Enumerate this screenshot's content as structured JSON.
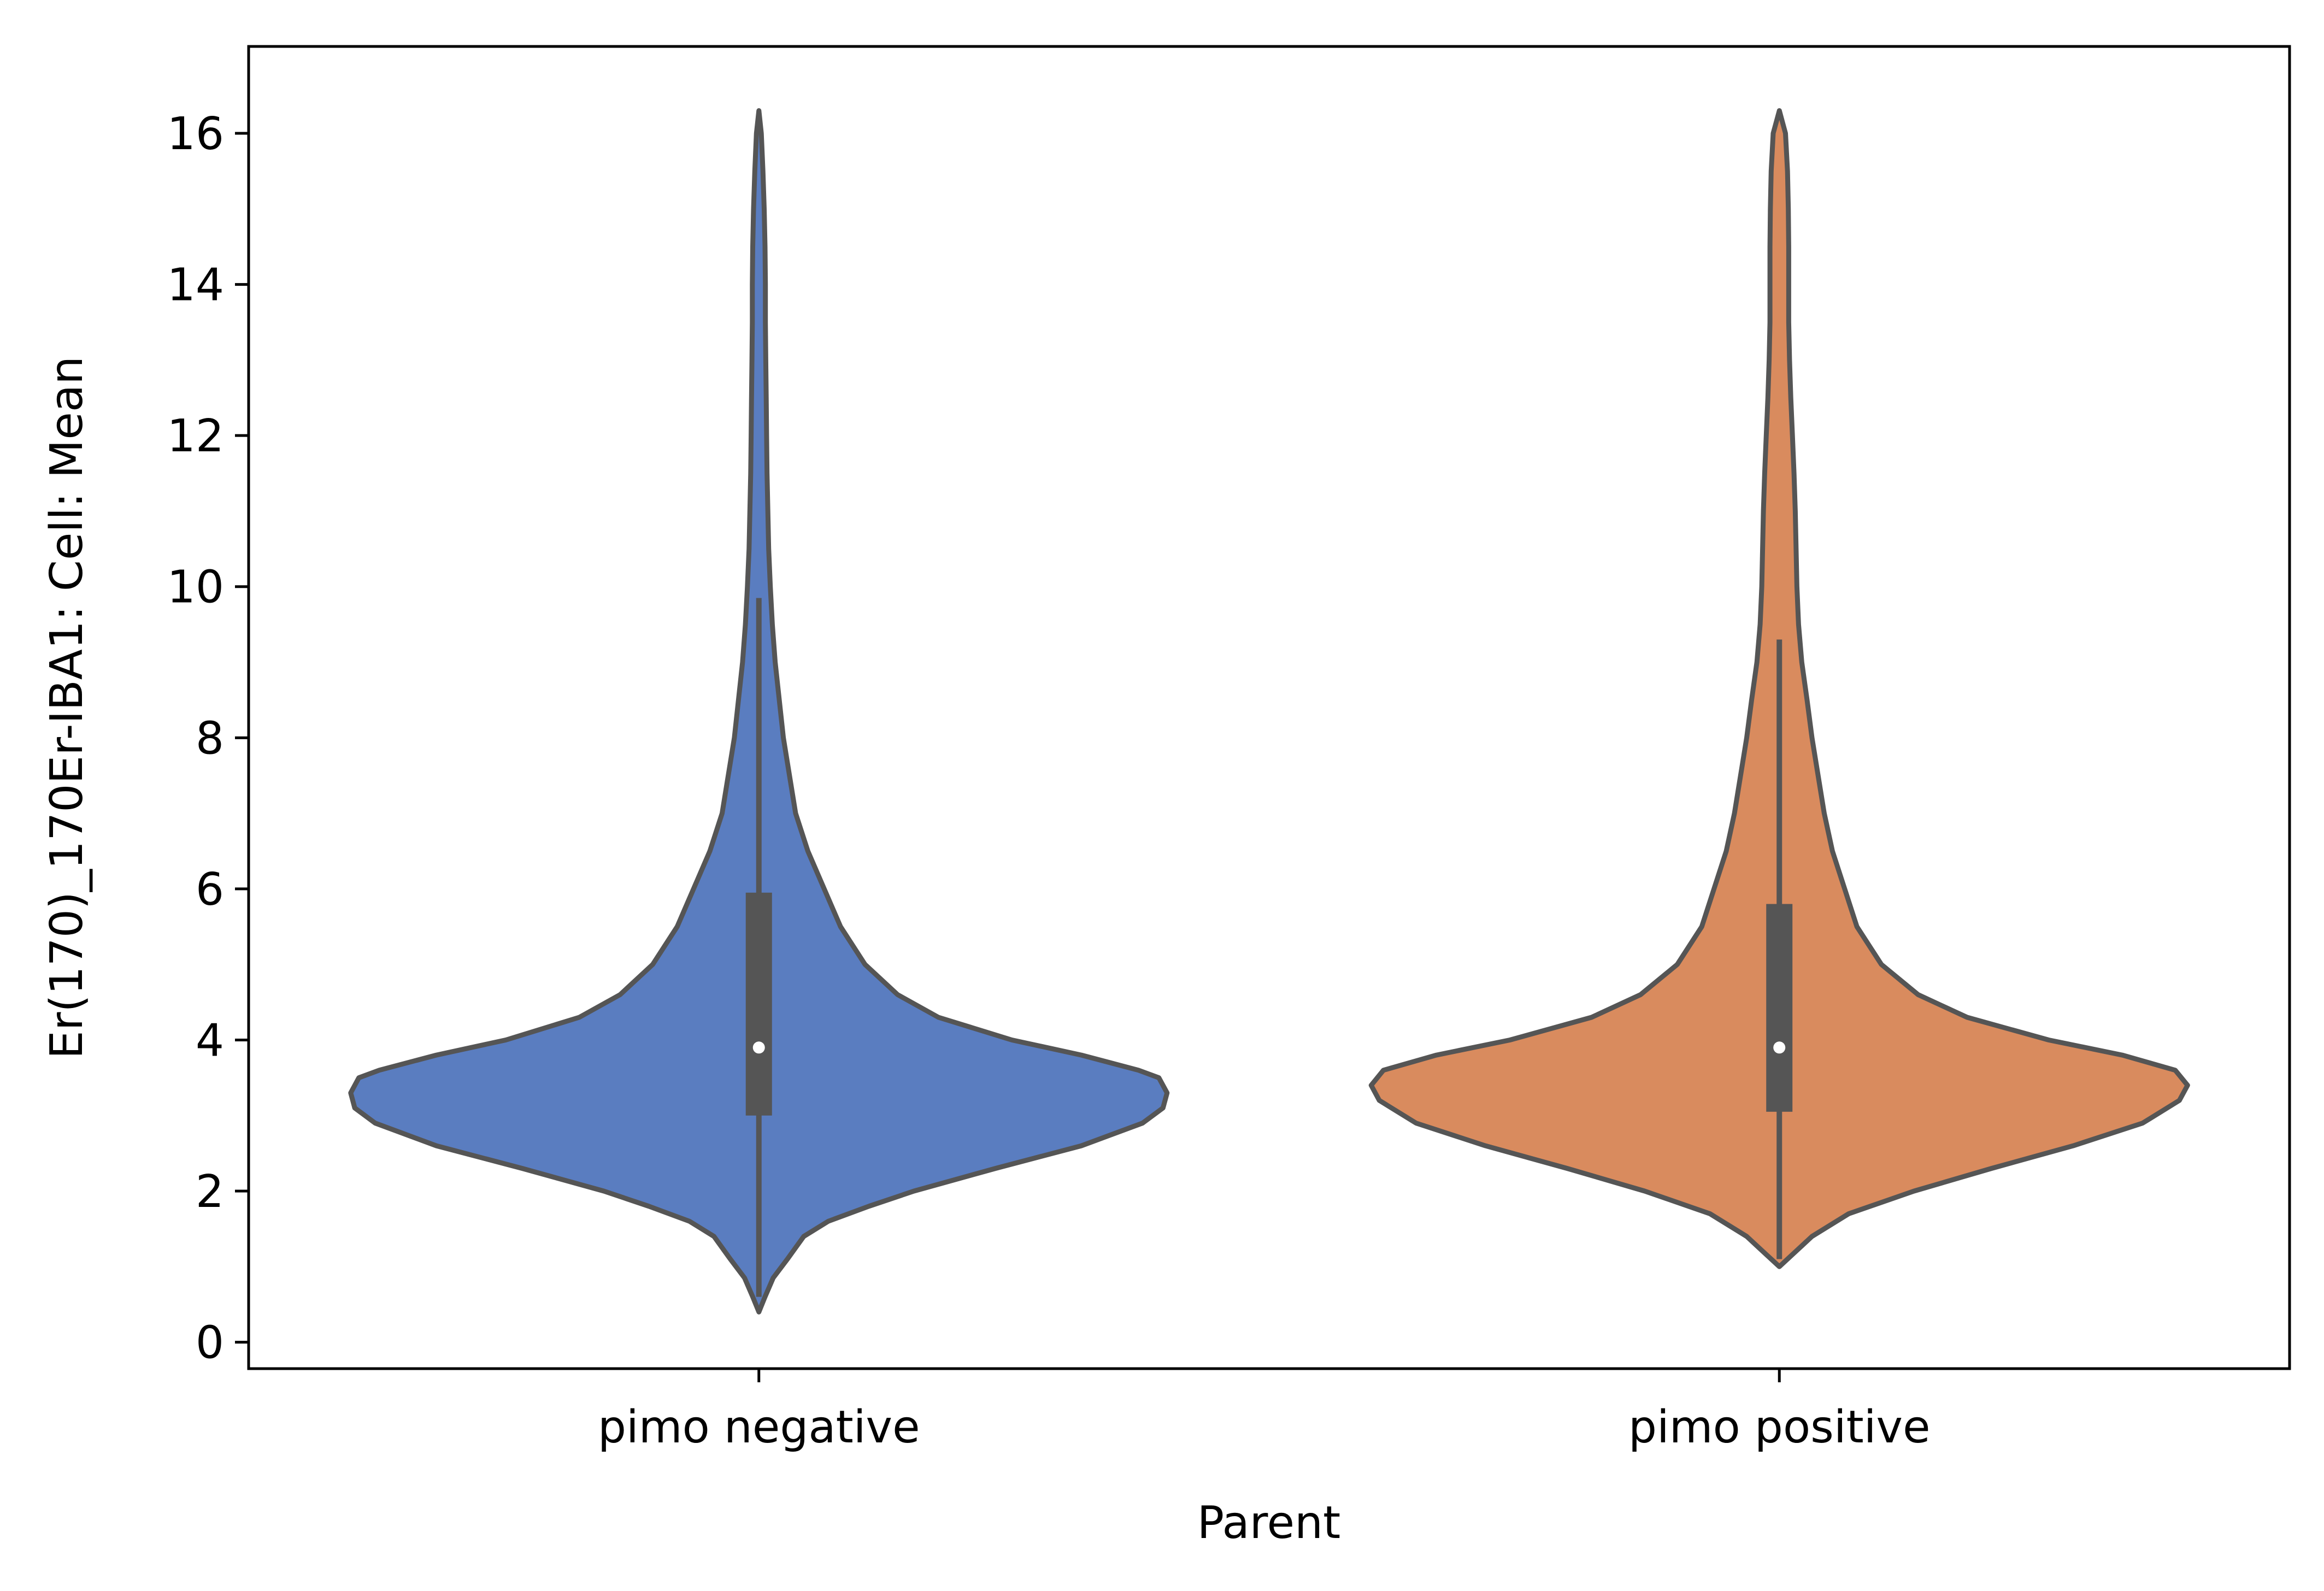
{
  "chart_data": {
    "type": "violin",
    "xlabel": "Parent",
    "ylabel": "Er(170)_170Er-IBA1: Cell: Mean",
    "categories": [
      "pimo negative",
      "pimo positive"
    ],
    "ylim": [
      -0.35,
      17.15
    ],
    "yticks": [
      0,
      2,
      4,
      6,
      8,
      10,
      12,
      14,
      16
    ],
    "grid": false,
    "colors": {
      "pimo negative": "#5a7dc0",
      "pimo positive": "#d98b5e",
      "outline": "#555555",
      "median_dot": "#ffffff"
    },
    "series": [
      {
        "category": "pimo negative",
        "min": 0.4,
        "max": 16.3,
        "q1": 3.0,
        "median": 3.9,
        "q3": 5.95,
        "whisker_low": 0.6,
        "whisker_high": 9.85,
        "density": [
          [
            0.4,
            0.0
          ],
          [
            0.6,
            0.015
          ],
          [
            0.85,
            0.035
          ],
          [
            1.1,
            0.07
          ],
          [
            1.4,
            0.11
          ],
          [
            1.6,
            0.17
          ],
          [
            1.8,
            0.27
          ],
          [
            2.0,
            0.38
          ],
          [
            2.3,
            0.58
          ],
          [
            2.6,
            0.79
          ],
          [
            2.9,
            0.94
          ],
          [
            3.1,
            0.99
          ],
          [
            3.3,
            1.0
          ],
          [
            3.5,
            0.98
          ],
          [
            3.6,
            0.93
          ],
          [
            3.8,
            0.79
          ],
          [
            4.0,
            0.62
          ],
          [
            4.3,
            0.44
          ],
          [
            4.6,
            0.34
          ],
          [
            5.0,
            0.26
          ],
          [
            5.5,
            0.2
          ],
          [
            6.0,
            0.16
          ],
          [
            6.5,
            0.12
          ],
          [
            7.0,
            0.09
          ],
          [
            7.5,
            0.075
          ],
          [
            8.0,
            0.06
          ],
          [
            8.5,
            0.05
          ],
          [
            9.0,
            0.04
          ],
          [
            9.5,
            0.033
          ],
          [
            10.0,
            0.028
          ],
          [
            10.5,
            0.024
          ],
          [
            11.0,
            0.022
          ],
          [
            11.5,
            0.02
          ],
          [
            12.0,
            0.019
          ],
          [
            12.5,
            0.018
          ],
          [
            13.0,
            0.017
          ],
          [
            13.5,
            0.016
          ],
          [
            14.0,
            0.016
          ],
          [
            14.5,
            0.015
          ],
          [
            15.0,
            0.013
          ],
          [
            15.5,
            0.01
          ],
          [
            16.0,
            0.006
          ],
          [
            16.3,
            0.0
          ]
        ]
      },
      {
        "category": "pimo positive",
        "min": 1.0,
        "max": 16.3,
        "q1": 3.05,
        "median": 3.9,
        "q3": 5.8,
        "whisker_low": 1.1,
        "whisker_high": 9.3,
        "density": [
          [
            1.0,
            0.0
          ],
          [
            1.15,
            0.03
          ],
          [
            1.4,
            0.08
          ],
          [
            1.7,
            0.17
          ],
          [
            2.0,
            0.33
          ],
          [
            2.3,
            0.52
          ],
          [
            2.6,
            0.72
          ],
          [
            2.9,
            0.89
          ],
          [
            3.2,
            0.98
          ],
          [
            3.4,
            1.0
          ],
          [
            3.6,
            0.97
          ],
          [
            3.8,
            0.84
          ],
          [
            4.0,
            0.66
          ],
          [
            4.3,
            0.46
          ],
          [
            4.6,
            0.34
          ],
          [
            5.0,
            0.25
          ],
          [
            5.5,
            0.19
          ],
          [
            6.0,
            0.16
          ],
          [
            6.5,
            0.13
          ],
          [
            7.0,
            0.11
          ],
          [
            7.5,
            0.095
          ],
          [
            8.0,
            0.08
          ],
          [
            8.5,
            0.068
          ],
          [
            9.0,
            0.055
          ],
          [
            9.5,
            0.047
          ],
          [
            10.0,
            0.043
          ],
          [
            10.5,
            0.041
          ],
          [
            11.0,
            0.039
          ],
          [
            11.5,
            0.036
          ],
          [
            12.0,
            0.032
          ],
          [
            12.5,
            0.028
          ],
          [
            13.0,
            0.025
          ],
          [
            13.5,
            0.023
          ],
          [
            14.0,
            0.023
          ],
          [
            14.5,
            0.023
          ],
          [
            15.0,
            0.022
          ],
          [
            15.5,
            0.02
          ],
          [
            16.0,
            0.015
          ],
          [
            16.3,
            0.0
          ]
        ]
      }
    ]
  }
}
